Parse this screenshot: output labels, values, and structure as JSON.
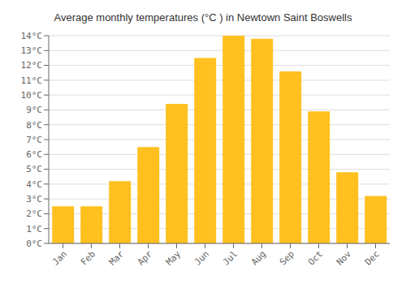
{
  "chart_data": {
    "type": "bar",
    "title": "Average monthly temperatures (°C ) in Newtown Saint Boswells",
    "categories": [
      "Jan",
      "Feb",
      "Mar",
      "Apr",
      "May",
      "Jun",
      "Jul",
      "Aug",
      "Sep",
      "Oct",
      "Nov",
      "Dec"
    ],
    "values": [
      2.5,
      2.5,
      4.2,
      6.5,
      9.4,
      12.5,
      14.0,
      13.8,
      11.6,
      8.9,
      4.8,
      3.2
    ],
    "color": "#FFC020",
    "ylim": [
      0,
      14
    ],
    "yticks": [
      {
        "value": 0,
        "label": "0°C"
      },
      {
        "value": 1,
        "label": "1°C"
      },
      {
        "value": 2,
        "label": "2°C"
      },
      {
        "value": 3,
        "label": "3°C"
      },
      {
        "value": 4,
        "label": "4°C"
      },
      {
        "value": 5,
        "label": "5°C"
      },
      {
        "value": 6,
        "label": "6°C"
      },
      {
        "value": 7,
        "label": "7°C"
      },
      {
        "value": 8,
        "label": "8°C"
      },
      {
        "value": 9,
        "label": "9°C"
      },
      {
        "value": 10,
        "label": "10°C"
      },
      {
        "value": 11,
        "label": "11°C"
      },
      {
        "value": 12,
        "label": "12°C"
      },
      {
        "value": 13,
        "label": "13°C"
      },
      {
        "value": 14,
        "label": "14°C"
      }
    ],
    "grid": true
  }
}
